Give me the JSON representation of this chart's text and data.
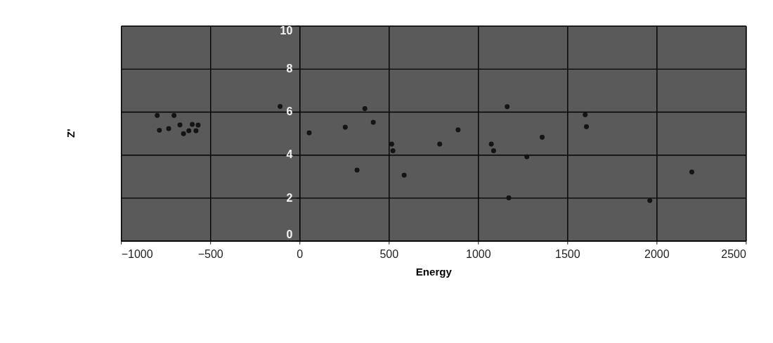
{
  "chart_data": {
    "type": "scatter",
    "xlabel": "Energy",
    "ylabel": "Z'",
    "x": [
      -797,
      -703,
      -785,
      -733,
      -670,
      -650,
      -620,
      -601,
      -568,
      -580,
      -109,
      54,
      256,
      366,
      413,
      516,
      523,
      322,
      586,
      785,
      888,
      1163,
      1074,
      1087,
      1359,
      1273,
      1172,
      1600,
      1607,
      1962,
      2197
    ],
    "series": [
      {
        "color": "#141414",
        "values": [
          5.83,
          5.83,
          5.14,
          5.22,
          5.39,
          4.98,
          5.12,
          5.41,
          5.38,
          5.12,
          6.25,
          5.02,
          5.28,
          6.15,
          5.51,
          4.5,
          4.19,
          3.29,
          3.05,
          4.5,
          5.16,
          6.24,
          4.5,
          4.19,
          4.82,
          3.91,
          2.0,
          5.86,
          5.31,
          1.87,
          3.2
        ]
      }
    ],
    "xlim": [
      -1000,
      2500
    ],
    "xticks": [
      -1000,
      -500,
      0,
      500,
      1000,
      1500,
      2000,
      2500
    ],
    "ylim": [
      0,
      10
    ],
    "yticks": [
      0,
      2,
      4,
      6,
      8,
      10
    ],
    "grid": true,
    "marker": "circle"
  }
}
